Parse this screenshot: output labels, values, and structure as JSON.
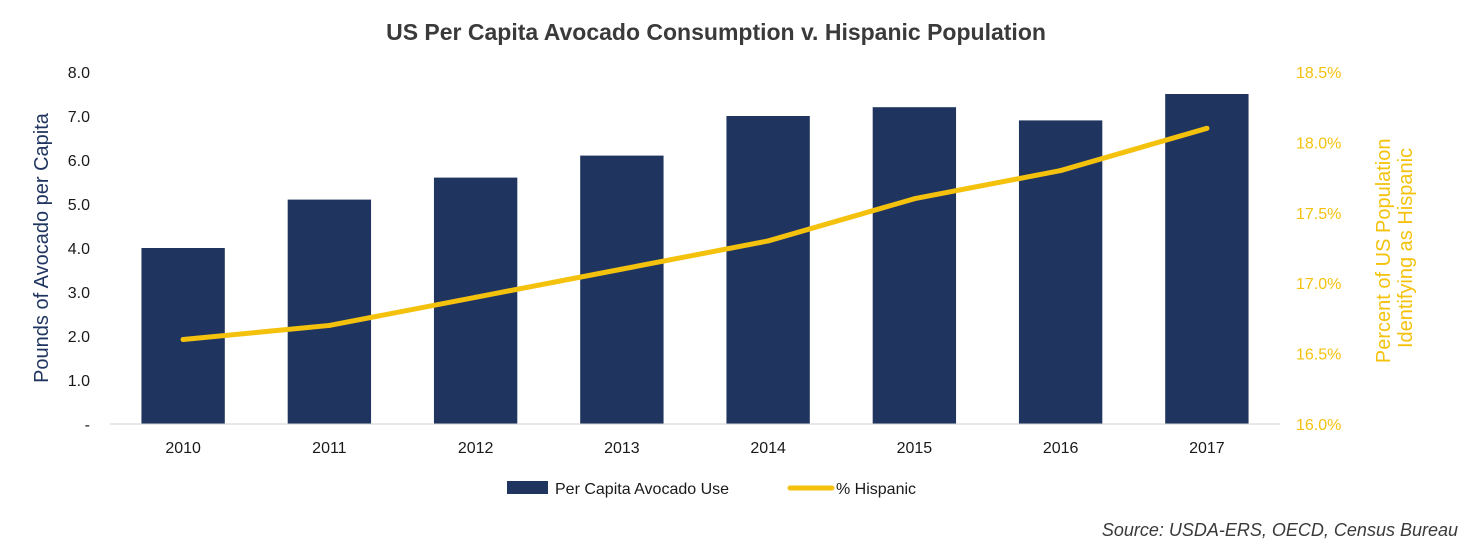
{
  "chart_data": {
    "type": "bar",
    "title": "US Per Capita Avocado Consumption v. Hispanic Population",
    "categories": [
      "2010",
      "2011",
      "2012",
      "2013",
      "2014",
      "2015",
      "2016",
      "2017"
    ],
    "series": [
      {
        "name": "Per Capita Avocado Use",
        "type": "bar",
        "axis": "left",
        "color": "#1f3560",
        "values": [
          4.0,
          5.1,
          5.6,
          6.1,
          7.0,
          7.2,
          6.9,
          7.5
        ]
      },
      {
        "name": "% Hispanic",
        "type": "line",
        "axis": "right",
        "color": "#f4c20d",
        "values": [
          16.6,
          16.7,
          16.9,
          17.1,
          17.3,
          17.6,
          17.8,
          18.1
        ]
      }
    ],
    "ylabel": "Pounds of Avocado per Capita",
    "ylim": [
      0,
      8
    ],
    "y_ticks": [
      "-",
      "1.0",
      "2.0",
      "3.0",
      "4.0",
      "5.0",
      "6.0",
      "7.0",
      "8.0"
    ],
    "y2label_lines": [
      "Percent of US Population",
      "Identifying as Hispanic"
    ],
    "y2lim": [
      16.0,
      18.5
    ],
    "y2_ticks": [
      "16.0%",
      "16.5%",
      "17.0%",
      "17.5%",
      "18.0%",
      "18.5%"
    ],
    "legend_position": "bottom",
    "grid": false
  },
  "source_note": "Source: USDA-ERS, OECD, Census Bureau"
}
